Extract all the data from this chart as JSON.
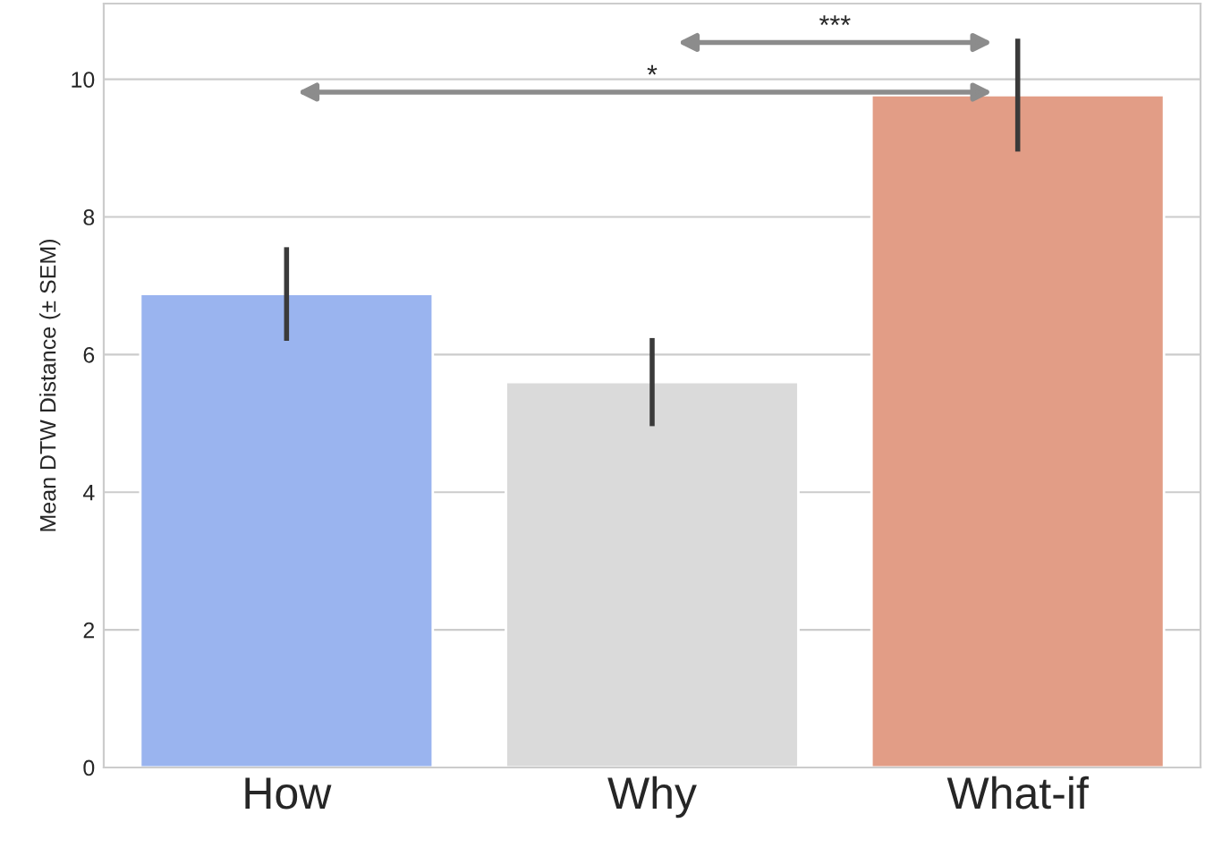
{
  "chart_data": {
    "type": "bar",
    "ylabel": "Mean DTW Distance (± SEM)",
    "categories": [
      "How",
      "Why",
      "What-if"
    ],
    "values": [
      6.88,
      5.6,
      9.77
    ],
    "errors": [
      0.68,
      0.64,
      0.82
    ],
    "colors": [
      "#9ab4ef",
      "#dadada",
      "#e29d86"
    ],
    "ylim": [
      0,
      11.1
    ],
    "yticks": [
      0,
      2,
      4,
      6,
      8,
      10
    ],
    "grid": "y",
    "annotations": [
      "*",
      "***"
    ]
  }
}
